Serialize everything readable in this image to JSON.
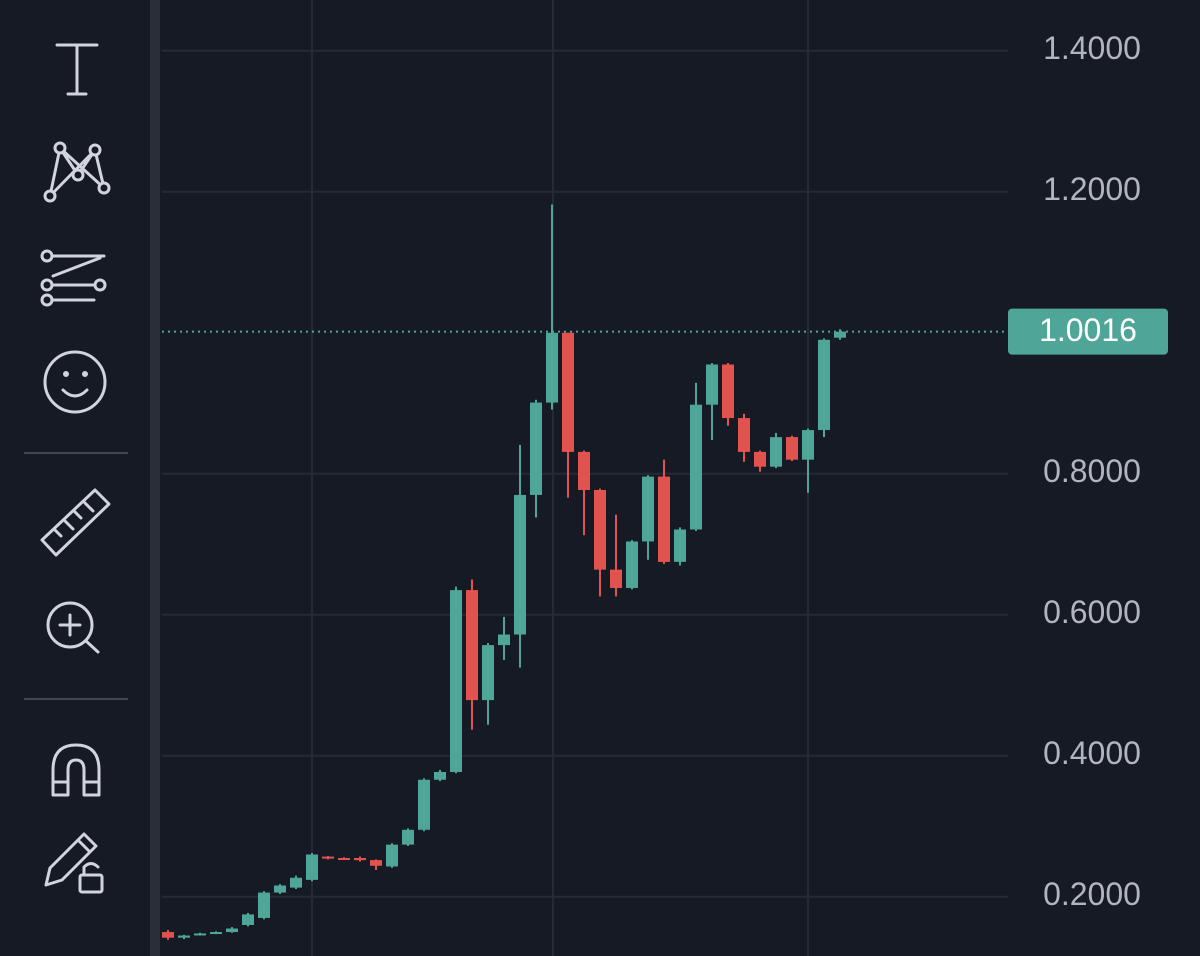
{
  "chart_data": {
    "type": "candlestick",
    "up_color": "#4fa597",
    "down_color": "#e2534f",
    "ylim": [
      0.116,
      1.472
    ],
    "yticks": [
      {
        "value": 0.2,
        "label": "0.2000"
      },
      {
        "value": 0.4,
        "label": "0.4000"
      },
      {
        "value": 0.6,
        "label": "0.6000"
      },
      {
        "value": 0.8,
        "label": "0.8000"
      },
      {
        "value": 1.2,
        "label": "1.2000"
      },
      {
        "value": 1.4,
        "label": "1.4000"
      }
    ],
    "grid": true,
    "last_price": 1.0016,
    "open": [
      0.15,
      0.142,
      0.146,
      0.148,
      0.15,
      0.16,
      0.17,
      0.206,
      0.213,
      0.224,
      0.257,
      0.255,
      0.255,
      0.252,
      0.243,
      0.274,
      0.295,
      0.366,
      0.377,
      0.635,
      0.479,
      0.557,
      0.572,
      0.77,
      0.901,
      1.0,
      0.831,
      0.777,
      0.664,
      0.638,
      0.704,
      0.796,
      0.675,
      0.721,
      0.898,
      0.955,
      0.879,
      0.831,
      0.81,
      0.852,
      0.82,
      0.862,
      0.993
    ],
    "close": [
      0.142,
      0.145,
      0.148,
      0.15,
      0.155,
      0.175,
      0.206,
      0.216,
      0.227,
      0.26,
      0.255,
      0.254,
      0.252,
      0.244,
      0.274,
      0.295,
      0.366,
      0.377,
      0.635,
      0.479,
      0.557,
      0.572,
      0.77,
      0.901,
      1.0,
      0.831,
      0.777,
      0.664,
      0.638,
      0.704,
      0.796,
      0.675,
      0.721,
      0.898,
      0.955,
      0.879,
      0.831,
      0.81,
      0.852,
      0.82,
      0.862,
      0.99,
      1.0016
    ],
    "high": [
      0.153,
      0.146,
      0.149,
      0.151,
      0.157,
      0.177,
      0.208,
      0.218,
      0.23,
      0.262,
      0.258,
      0.256,
      0.257,
      0.253,
      0.276,
      0.297,
      0.368,
      0.38,
      0.64,
      0.65,
      0.56,
      0.597,
      0.841,
      0.905,
      1.182,
      1.0,
      0.833,
      0.779,
      0.742,
      0.706,
      0.798,
      0.82,
      0.724,
      0.929,
      0.957,
      0.957,
      0.885,
      0.833,
      0.858,
      0.854,
      0.864,
      0.992,
      1.005
    ],
    "low": [
      0.139,
      0.14,
      0.145,
      0.147,
      0.149,
      0.158,
      0.168,
      0.204,
      0.211,
      0.222,
      0.253,
      0.252,
      0.25,
      0.238,
      0.241,
      0.272,
      0.293,
      0.364,
      0.375,
      0.437,
      0.444,
      0.536,
      0.525,
      0.738,
      0.891,
      0.766,
      0.713,
      0.626,
      0.626,
      0.636,
      0.678,
      0.672,
      0.67,
      0.719,
      0.848,
      0.868,
      0.817,
      0.803,
      0.808,
      0.818,
      0.773,
      0.852,
      0.99
    ]
  }
}
